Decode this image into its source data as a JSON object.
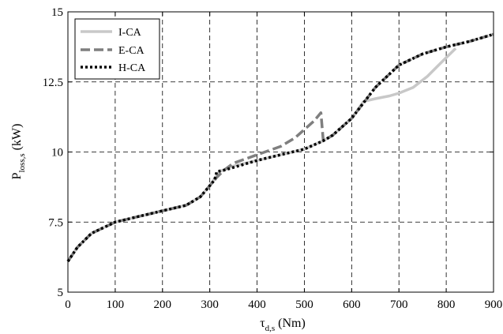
{
  "chart_data": {
    "type": "line",
    "xlabel": "τd,s (Nm)",
    "xlabel_main": "τ",
    "xlabel_sub": "d,s",
    "xlabel_unit": " (Nm)",
    "ylabel": "Ploss,s (kW)",
    "ylabel_main": "P",
    "ylabel_sub": "loss,s",
    "ylabel_unit": " (kW)",
    "xlim": [
      0,
      900
    ],
    "ylim": [
      5,
      15
    ],
    "xticks": [
      0,
      100,
      200,
      300,
      400,
      500,
      600,
      700,
      800,
      900
    ],
    "yticks": [
      5,
      7.5,
      10,
      12.5,
      15
    ],
    "xtick_labels": [
      "0",
      "100",
      "200",
      "300",
      "400",
      "500",
      "600",
      "700",
      "800",
      "900"
    ],
    "ytick_labels": [
      "5",
      "7.5",
      "10",
      "12.5",
      "15"
    ],
    "grid": true,
    "grid_style": "dashed",
    "legend_position": "top-left",
    "series": [
      {
        "name": "I-CA",
        "color": "#c8c8c8",
        "style": "solid",
        "x": [
          0,
          20,
          50,
          100,
          150,
          200,
          250,
          280,
          300,
          320,
          350,
          400,
          450,
          500,
          540,
          560,
          600,
          625,
          650,
          680,
          700,
          730,
          760,
          790,
          820
        ],
        "y": [
          6.1,
          6.6,
          7.1,
          7.5,
          7.7,
          7.9,
          8.1,
          8.4,
          8.8,
          9.3,
          9.5,
          9.7,
          9.9,
          10.1,
          10.4,
          10.6,
          11.2,
          11.8,
          11.9,
          12.0,
          12.1,
          12.3,
          12.7,
          13.2,
          13.7
        ]
      },
      {
        "name": "E-CA",
        "color": "#7f7f7f",
        "style": "dashed",
        "x": [
          0,
          20,
          50,
          100,
          150,
          200,
          250,
          280,
          300,
          315,
          330,
          350,
          400,
          450,
          480,
          500,
          520,
          535,
          540,
          560,
          600,
          650,
          700,
          750,
          800,
          850,
          900
        ],
        "y": [
          6.1,
          6.6,
          7.1,
          7.5,
          7.7,
          7.9,
          8.1,
          8.4,
          8.8,
          9.1,
          9.35,
          9.6,
          9.9,
          10.2,
          10.5,
          10.8,
          11.1,
          11.4,
          10.4,
          10.6,
          11.2,
          12.3,
          13.1,
          13.5,
          13.75,
          13.95,
          14.2
        ]
      },
      {
        "name": "H-CA",
        "color": "#000000",
        "style": "dotted",
        "x": [
          0,
          20,
          50,
          100,
          150,
          200,
          250,
          280,
          300,
          310,
          315,
          330,
          400,
          450,
          500,
          540,
          560,
          600,
          650,
          700,
          750,
          800,
          850,
          900
        ],
        "y": [
          6.1,
          6.6,
          7.1,
          7.5,
          7.7,
          7.9,
          8.1,
          8.4,
          8.8,
          9.0,
          9.3,
          9.35,
          9.7,
          9.9,
          10.1,
          10.4,
          10.6,
          11.2,
          12.3,
          13.1,
          13.5,
          13.75,
          13.95,
          14.2
        ]
      }
    ]
  }
}
